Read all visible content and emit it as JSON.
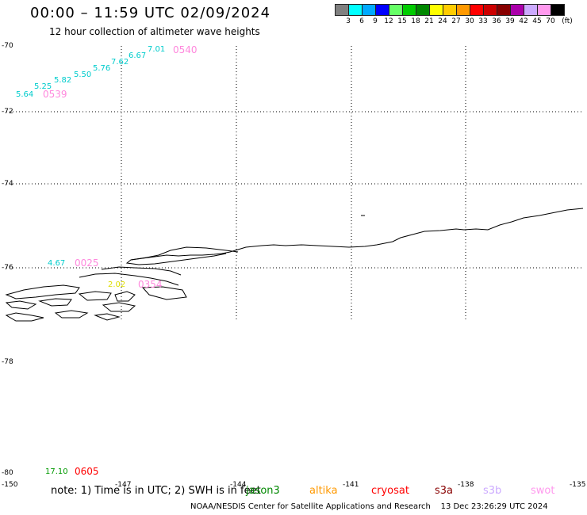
{
  "header": {
    "title": "00:00 – 11:59 UTC 02/09/2024",
    "subtitle": "12 hour collection of altimeter wave heights"
  },
  "colorbar": {
    "swatches": [
      "#808080",
      "#00ffff",
      "#00aaff",
      "#0000ff",
      "#66ff66",
      "#00cc00",
      "#008800",
      "#ffff00",
      "#ffcc00",
      "#ff9900",
      "#ff0000",
      "#cc0000",
      "#880000",
      "#aa00aa",
      "#ccaaff",
      "#ff99ee",
      "#000000"
    ],
    "labels": [
      "3",
      "6",
      "9",
      "12",
      "15",
      "18",
      "21",
      "24",
      "27",
      "30",
      "33",
      "36",
      "39",
      "42",
      "45",
      "70",
      "(ft)"
    ]
  },
  "axes": {
    "lat_labels": [
      "-70",
      "-72",
      "-74",
      "-76",
      "-78",
      "-80"
    ],
    "lon_labels": [
      "-150",
      "-147",
      "-144",
      "-141",
      "-138",
      "-135"
    ]
  },
  "track_heights": {
    "cyan_track": [
      "5.64",
      "5.25",
      "5.82",
      "5.50",
      "5.76",
      "7.62",
      "6.67",
      "7.01"
    ],
    "cyan_lone": "4.67",
    "yellow_lone": "2.02",
    "green_lone": "17.10"
  },
  "pass_times": {
    "t0539": "0539",
    "t0540": "0540",
    "t0025": "0025",
    "t0354": "0354",
    "t0605": "0605"
  },
  "note": {
    "prefix": "note: 1) Time is in UTC; 2) SWH is in feet",
    "satellites": [
      {
        "name": "jason3",
        "color": "#008800"
      },
      {
        "name": "altika",
        "color": "#ff9900"
      },
      {
        "name": "cryosat",
        "color": "#ff0000"
      },
      {
        "name": "s3a",
        "color": "#880000"
      },
      {
        "name": "s3b",
        "color": "#ccaaff"
      },
      {
        "name": "swot",
        "color": "#ff99ee"
      }
    ]
  },
  "credit": {
    "left": "NOAA/NESDIS Center for Satellite Applications and Research",
    "right": "13 Dec 23:26:29 UTC 2024"
  }
}
